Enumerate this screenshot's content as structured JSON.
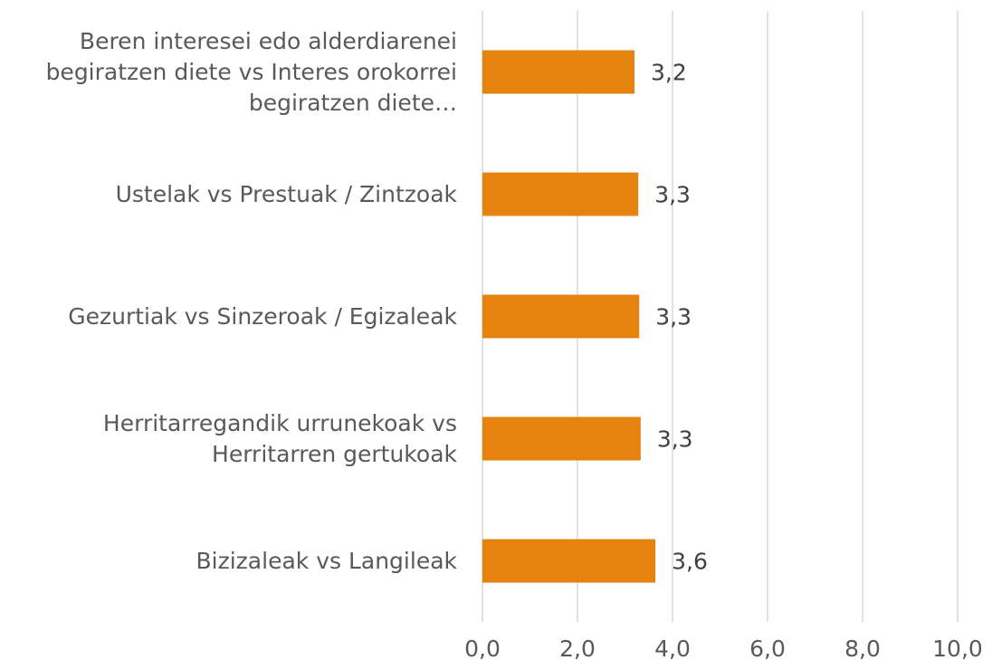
{
  "chart_data": {
    "type": "bar",
    "orientation": "horizontal",
    "categories": [
      "Beren interesei edo alderdiarenei begiratzen diete vs Interes orokorrei begiratzen diete…",
      "Ustelak vs Prestuak / Zintzoak",
      "Gezurtiak vs Sinzeroak / Egizaleak",
      "Herritarregandik urrunekoak vs Herritarren gertukoak",
      "Bizizaleak vs Langileak"
    ],
    "values": [
      3.2,
      3.28,
      3.3,
      3.33,
      3.64
    ],
    "value_labels": [
      "3,2",
      "3,3",
      "3,3",
      "3,3",
      "3,6"
    ],
    "color": "#e6820e",
    "xlim": [
      0,
      10
    ],
    "xticks": [
      {
        "value": 0,
        "label": "0,0"
      },
      {
        "value": 2,
        "label": "2,0"
      },
      {
        "value": 4,
        "label": "4,0"
      },
      {
        "value": 6,
        "label": "6,0"
      },
      {
        "value": 8,
        "label": "8,0"
      },
      {
        "value": 10,
        "label": "10,0"
      }
    ],
    "grid": true
  }
}
